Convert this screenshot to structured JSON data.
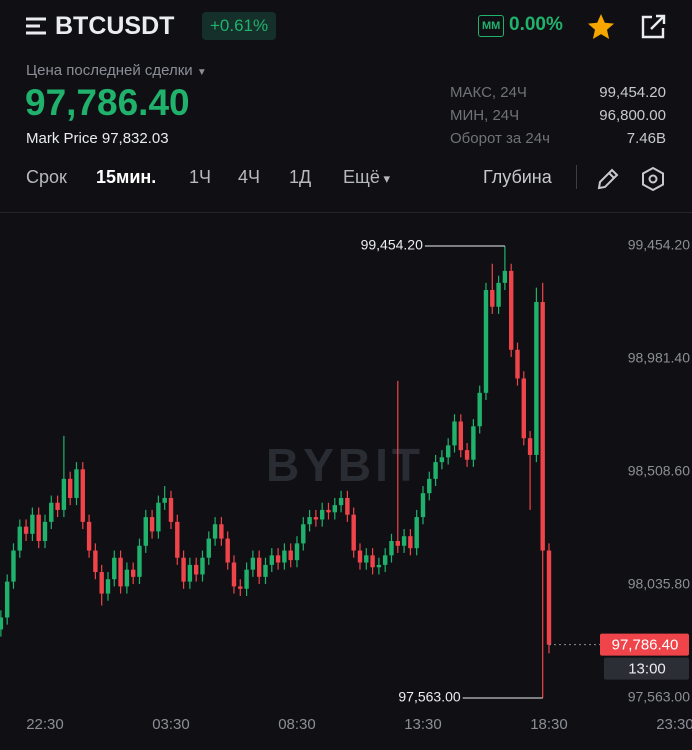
{
  "header": {
    "symbol": "BTCUSDT",
    "change": "+0.61%",
    "badge": "MM",
    "funding": "0.00%",
    "last_trade_label": "Цена последней сделки",
    "last_price": "97,786.40",
    "mark_price_label": "Mark Price",
    "mark_price": "97,832.03",
    "stats": [
      {
        "label": "МАКС, 24Ч",
        "value": "99,454.20"
      },
      {
        "label": "МИН, 24Ч",
        "value": "96,800.00"
      },
      {
        "label": "Оборот за 24ч",
        "value": "7.46B"
      }
    ],
    "tabs": [
      "Срок",
      "15мин.",
      "1Ч",
      "4Ч",
      "1Д",
      "Ещё"
    ],
    "depth": "Глубина"
  },
  "chart_data": {
    "type": "candlestick",
    "watermark": "BYBIT",
    "up_color": "#20b26c",
    "down_color": "#ef454a",
    "xlim": [
      -0.14,
      109.7
    ],
    "ylim": [
      97504.5,
      99596.5
    ],
    "xticks": [
      {
        "value": 7,
        "label": "22:30"
      },
      {
        "value": 27,
        "label": "03:30"
      },
      {
        "value": 47,
        "label": "08:30"
      },
      {
        "value": 67,
        "label": "13:30"
      },
      {
        "value": 87,
        "label": "18:30"
      },
      {
        "value": 107,
        "label": "23:30"
      }
    ],
    "yticks": [
      {
        "value": 99454.2,
        "label": "99,454.20"
      },
      {
        "value": 98981.4,
        "label": "98,981.40"
      },
      {
        "value": 98508.6,
        "label": "98,508.60"
      },
      {
        "value": 98035.8,
        "label": "98,035.80"
      },
      {
        "value": 97563,
        "label": "97,563.00"
      }
    ],
    "open": [
      97850,
      97900,
      98050,
      98180,
      98280,
      98250,
      98330,
      98220,
      98300,
      98380,
      98350,
      98480,
      98400,
      98520,
      98300,
      98180,
      98090,
      98000,
      98060,
      98150,
      98030,
      98100,
      98070,
      98200,
      98320,
      98260,
      98380,
      98400,
      98300,
      98150,
      98050,
      98120,
      98080,
      98150,
      98230,
      98290,
      98230,
      98130,
      98030,
      98020,
      98100,
      98150,
      98070,
      98120,
      98160,
      98130,
      98180,
      98140,
      98210,
      98290,
      98320,
      98310,
      98350,
      98340,
      98370,
      98400,
      98330,
      98180,
      98130,
      98160,
      98110,
      98120,
      98160,
      98220,
      98200,
      98240,
      98190,
      98320,
      98420,
      98480,
      98550,
      98570,
      98620,
      98720,
      98600,
      98560,
      98700,
      98840,
      99270,
      99200,
      99300,
      99350,
      99020,
      98900,
      98650,
      98580,
      99220,
      98180
    ],
    "high": [
      97930,
      98080,
      98210,
      98310,
      98310,
      98360,
      98360,
      98330,
      98410,
      98410,
      98660,
      98510,
      98550,
      98550,
      98330,
      98210,
      98120,
      98090,
      98180,
      98180,
      98130,
      98130,
      98230,
      98350,
      98350,
      98410,
      98450,
      98430,
      98330,
      98180,
      98150,
      98150,
      98180,
      98260,
      98320,
      98320,
      98260,
      98160,
      98060,
      98130,
      98180,
      98180,
      98150,
      98190,
      98190,
      98210,
      98210,
      98240,
      98320,
      98350,
      98350,
      98380,
      98380,
      98400,
      98430,
      98430,
      98360,
      98210,
      98190,
      98190,
      98150,
      98190,
      98250,
      98890,
      98270,
      98270,
      98350,
      98450,
      98510,
      98580,
      98600,
      98650,
      98750,
      98750,
      98630,
      98730,
      98870,
      99300,
      99380,
      99330,
      99454.2,
      99380,
      99050,
      98930,
      98680,
      99280,
      99300,
      98210
    ],
    "low": [
      97820,
      97870,
      98020,
      98150,
      98220,
      98220,
      98190,
      98190,
      98270,
      98320,
      98320,
      98370,
      98370,
      98270,
      98150,
      98060,
      97950,
      97970,
      98030,
      98000,
      98000,
      98040,
      98040,
      98170,
      98230,
      98230,
      98350,
      98270,
      98120,
      98020,
      98020,
      98050,
      98050,
      98120,
      98200,
      98200,
      98100,
      98000,
      97990,
      97990,
      98070,
      98040,
      98040,
      98090,
      98100,
      98100,
      98110,
      98110,
      98180,
      98260,
      98280,
      98280,
      98310,
      98310,
      98340,
      98300,
      98150,
      98100,
      98100,
      98080,
      98080,
      98090,
      98130,
      98170,
      98170,
      98160,
      98160,
      98290,
      98390,
      98450,
      98520,
      98540,
      98590,
      98570,
      98530,
      98530,
      98670,
      98810,
      99170,
      99170,
      99270,
      98990,
      98870,
      98620,
      98350,
      98550,
      97563,
      97750
    ],
    "close": [
      97900,
      98050,
      98180,
      98280,
      98250,
      98330,
      98220,
      98300,
      98380,
      98350,
      98480,
      98400,
      98520,
      98300,
      98180,
      98090,
      98000,
      98060,
      98150,
      98030,
      98100,
      98070,
      98200,
      98320,
      98260,
      98380,
      98400,
      98300,
      98150,
      98050,
      98120,
      98080,
      98150,
      98230,
      98290,
      98230,
      98130,
      98030,
      98020,
      98100,
      98150,
      98070,
      98120,
      98160,
      98130,
      98180,
      98140,
      98210,
      98290,
      98320,
      98310,
      98350,
      98340,
      98370,
      98400,
      98330,
      98180,
      98130,
      98160,
      98110,
      98120,
      98160,
      98220,
      98200,
      98240,
      98190,
      98320,
      98420,
      98480,
      98550,
      98570,
      98620,
      98720,
      98600,
      98560,
      98700,
      98840,
      99270,
      99200,
      99300,
      99350,
      99020,
      98900,
      98650,
      98580,
      99220,
      98180,
      97786.4
    ],
    "high_label": {
      "value": 99454.2,
      "label": "99,454.20"
    },
    "low_label": {
      "value": 97563,
      "label": "97,563.00"
    },
    "last_price": {
      "value": 97786.4,
      "label": "97,786.40"
    },
    "countdown": "13:00"
  }
}
